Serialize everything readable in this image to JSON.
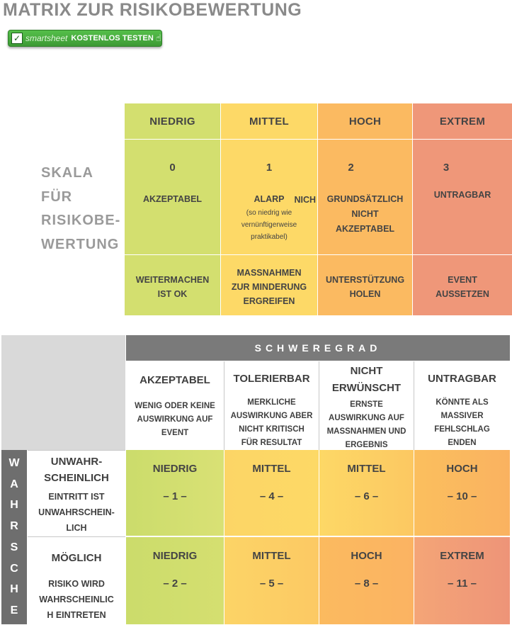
{
  "title": "MATRIX ZUR RISIKOBEWERTUNG",
  "cta": {
    "brand": "smartsheet",
    "label": "KOSTENLOS TESTEN"
  },
  "scale": {
    "caption": [
      "SKALA",
      "FÜR",
      "RISIKOBE-",
      "WERTUNG"
    ],
    "levels": [
      {
        "name": "NIEDRIG",
        "num": "0",
        "desc": [
          "AKZEPTABEL"
        ],
        "action": [
          "WEITERMACHEN",
          "IST OK"
        ],
        "color": "#d3df6f"
      },
      {
        "name": "MITTEL",
        "num": "1",
        "desc": [
          "ALARP"
        ],
        "desc_suffix": "NICH",
        "note": [
          "(so niedrig wie",
          "vernünftigerweise",
          "praktikabel)"
        ],
        "action": [
          "MASSNAHMEN",
          "ZUR MINDERUNG",
          "ERGREIFEN"
        ],
        "color": "#fdd967"
      },
      {
        "name": "HOCH",
        "num": "2",
        "desc": [
          "GRUNDSÄTZLICH",
          "NICHT",
          "AKZEPTABEL"
        ],
        "action": [
          "UNTERSTÜTZUNG",
          "HOLEN"
        ],
        "color": "#fbba61"
      },
      {
        "name": "EXTREM",
        "num": "3",
        "desc": [
          "UNTRAGBAR"
        ],
        "action": [
          "EVENT",
          "AUSSETZEN"
        ],
        "color": "#ef9779"
      }
    ]
  },
  "matrix": {
    "severity_label": "SCHWEREGRAD",
    "severity": [
      {
        "title": [
          "AKZEPTABEL"
        ],
        "desc": [
          "WENIG ODER KEINE",
          "AUSWIRKUNG AUF",
          "EVENT"
        ]
      },
      {
        "title": [
          "TOLERIERBAR"
        ],
        "desc": [
          "MERKLICHE",
          "AUSWIRKUNG ABER",
          "NICHT KRITISCH",
          "FÜR RESULTAT"
        ]
      },
      {
        "title": [
          "NICHT",
          "ERWÜNSCHT"
        ],
        "desc": [
          "ERNSTE",
          "AUSWIRKUNG AUF",
          "MASSNAHMEN UND",
          "ERGEBNIS"
        ]
      },
      {
        "title": [
          "UNTRAGBAR"
        ],
        "desc": [
          "KÖNNTE ALS",
          "MASSIVER",
          "FEHLSCHLAG",
          "ENDEN"
        ]
      }
    ],
    "likelihood_letters": [
      "W",
      "A",
      "H",
      "R",
      "S",
      "C",
      "H",
      "E"
    ],
    "rows": [
      {
        "title": [
          "UNWAHR-",
          "SCHEINLICH"
        ],
        "desc": [
          "EINTRITT IST",
          "UNWAHRSCHEIN-",
          "LICH"
        ],
        "cells": [
          {
            "level": "NIEDRIG",
            "value": "– 1 –"
          },
          {
            "level": "MITTEL",
            "value": "– 4 –"
          },
          {
            "level": "MITTEL",
            "value": "– 6 –"
          },
          {
            "level": "HOCH",
            "value": "– 10 –"
          }
        ]
      },
      {
        "title": [
          "MÖGLICH"
        ],
        "desc": [
          "RISIKO WIRD",
          "WAHRSCHEINLIC",
          "H EINTRETEN"
        ],
        "cells": [
          {
            "level": "NIEDRIG",
            "value": "– 2 –"
          },
          {
            "level": "MITTEL",
            "value": "– 5 –"
          },
          {
            "level": "HOCH",
            "value": "– 8 –"
          },
          {
            "level": "EXTREM",
            "value": "– 11 –"
          }
        ]
      }
    ]
  }
}
